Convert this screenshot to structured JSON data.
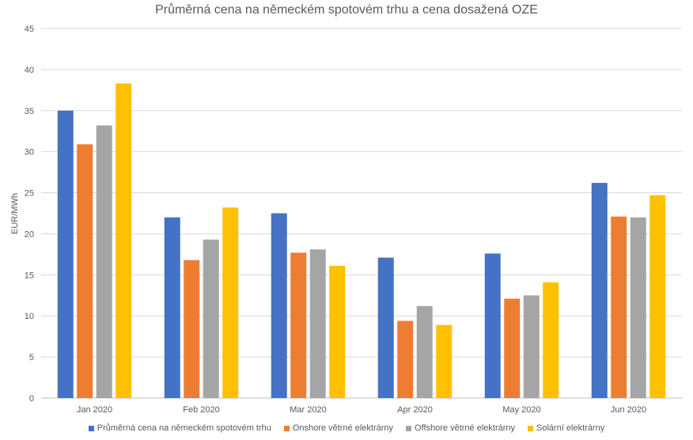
{
  "chart_data": {
    "type": "bar",
    "title": "Průměrná cena na německém spotovém trhu a cena dosažená OZE",
    "xlabel": "",
    "ylabel": "EUR/MWh",
    "ylim": [
      0,
      45
    ],
    "yticks": [
      0,
      5,
      10,
      15,
      20,
      25,
      30,
      35,
      40,
      45
    ],
    "grid": true,
    "legend_position": "bottom",
    "categories": [
      "Jan 2020",
      "Feb 2020",
      "Mar 2020",
      "Apr 2020",
      "May 2020",
      "Jun 2020"
    ],
    "series": [
      {
        "name": "Průměrná cena na německém spotovém trhu",
        "color": "#4472C4",
        "values": [
          35.0,
          22.0,
          22.5,
          17.1,
          17.6,
          26.2
        ]
      },
      {
        "name": "Onshore větrné elektrárny",
        "color": "#ED7D31",
        "values": [
          30.9,
          16.8,
          17.7,
          9.4,
          12.1,
          22.1
        ]
      },
      {
        "name": "Offshore větrné elektrárny",
        "color": "#A5A5A5",
        "values": [
          33.2,
          19.3,
          18.1,
          11.2,
          12.5,
          22.0
        ]
      },
      {
        "name": "Solární elektrárny",
        "color": "#FFC000",
        "values": [
          38.3,
          23.2,
          16.1,
          8.9,
          14.1,
          24.7
        ]
      }
    ]
  }
}
